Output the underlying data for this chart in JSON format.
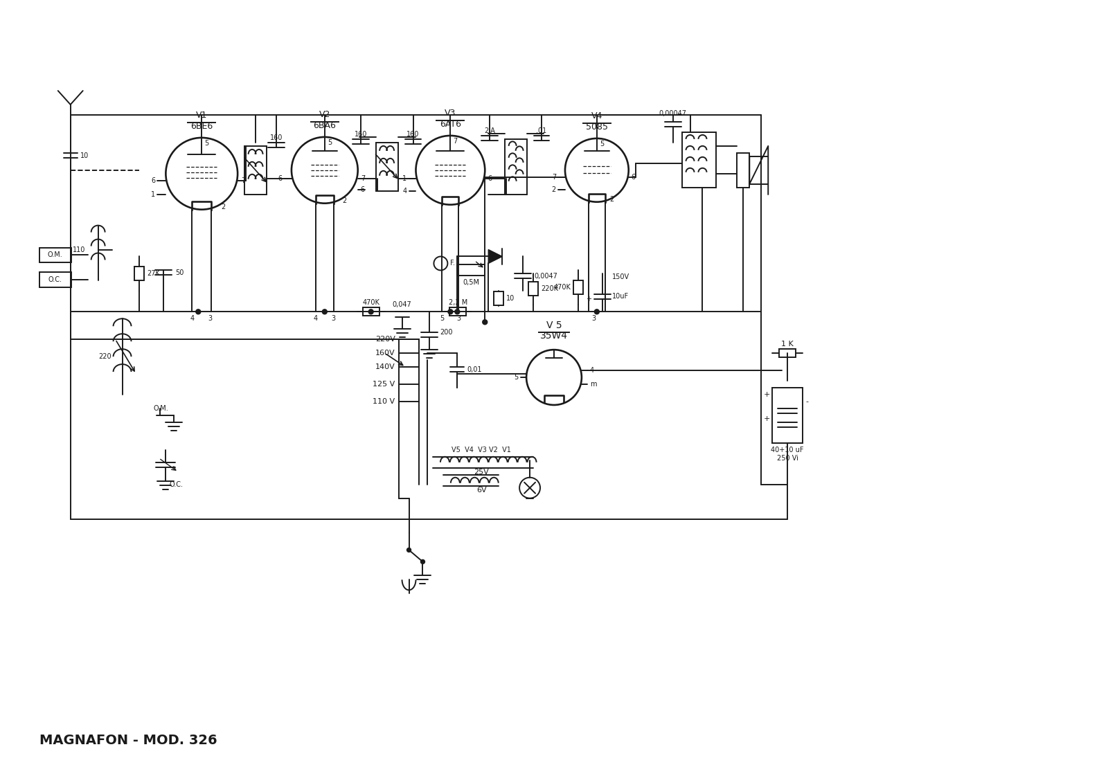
{
  "title": "MAGNAFON - MOD. 326",
  "bg_color": "#ffffff",
  "line_color": "#1a1a1a",
  "figsize": [
    16.0,
    11.31
  ],
  "dpi": 100,
  "tube_labels": [
    {
      "id": "V1",
      "type": "6BE6",
      "ix": 285,
      "iy": 130
    },
    {
      "id": "V2",
      "type": "6BA6",
      "ix": 455,
      "iy": 130
    },
    {
      "id": "V3",
      "type": "6AT6",
      "ix": 625,
      "iy": 130
    },
    {
      "id": "V4",
      "type": "5085",
      "ix": 820,
      "iy": 130
    },
    {
      "id": "V 5",
      "type": "35W4",
      "ix": 785,
      "iy": 490
    }
  ]
}
